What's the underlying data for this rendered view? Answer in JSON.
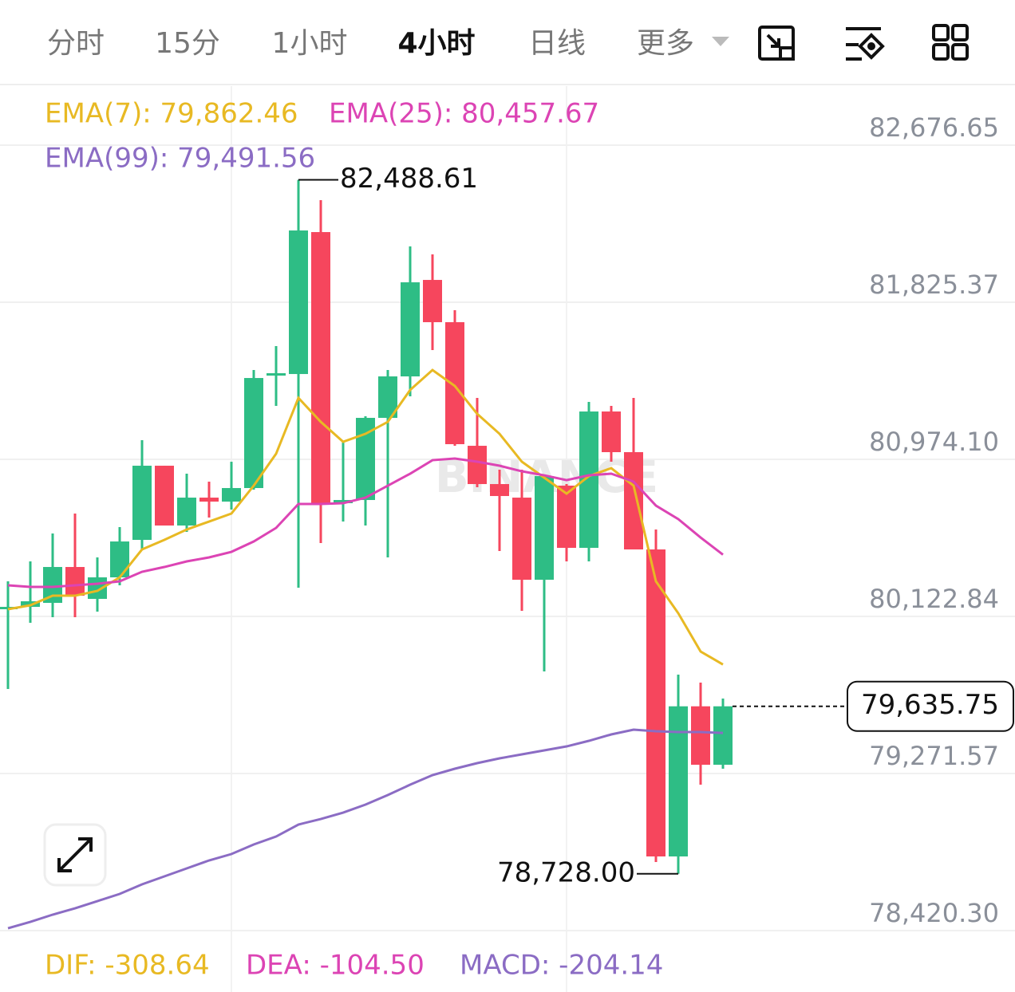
{
  "tabs": {
    "items": [
      "分时",
      "15分",
      "1小时",
      "4小时",
      "日线",
      "更多"
    ],
    "active": 3
  },
  "chart_data": {
    "type": "candlestick",
    "watermark": "BINANCE",
    "up_color": "#2ebd85",
    "down_color": "#f6465d",
    "ylim": [
      78420.3,
      83000
    ],
    "yticks": [
      {
        "value": 82676.65,
        "label": "82,676.65"
      },
      {
        "value": 81825.37,
        "label": "81,825.37"
      },
      {
        "value": 80974.1,
        "label": "80,974.10"
      },
      {
        "value": 80122.84,
        "label": "80,122.84"
      },
      {
        "value": 79271.57,
        "label": "79,271.57"
      },
      {
        "value": 78420.3,
        "label": "78,420.30"
      }
    ],
    "grid": true,
    "open": [
      80161.7,
      80174.6,
      80196.3,
      80390.7,
      80217.9,
      80334.5,
      80537.6,
      80939.5,
      80615.4,
      80766.6,
      80745.0,
      80818.5,
      81427.8,
      81436.4,
      82205.6,
      80736.4,
      80753.7,
      81198.8,
      81423.5,
      81946.3,
      81717.3,
      81047.5,
      80840.1,
      80766.6,
      80321.6,
      80831.5,
      80494.4,
      81233.3,
      81013.0,
      80485.8,
      78822.1,
      79635.75,
      79319.0
    ],
    "high": [
      80312.9,
      80421.0,
      80572.2,
      80680.2,
      80442.6,
      80606.8,
      81077.8,
      80939.5,
      80896.3,
      80853.1,
      80961.1,
      81458.0,
      81587.7,
      82488.61,
      82378.5,
      81069.1,
      81207.4,
      81458.0,
      82127.8,
      82084.6,
      81782.1,
      81306.8,
      80917.9,
      80917.9,
      80883.3,
      80840.1,
      81285.2,
      81263.6,
      81306.8,
      80593.8,
      79807.3,
      79764.1,
      79677.7
    ],
    "low": [
      79729.6,
      80088.2,
      80118.5,
      80118.5,
      80148.7,
      80291.3,
      80485.8,
      80615.4,
      80580.8,
      80658.6,
      80701.8,
      80809.9,
      81263.6,
      80278.4,
      80520.3,
      80637.0,
      80615.4,
      80442.6,
      81315.5,
      81566.1,
      81047.5,
      80822.8,
      80477.1,
      80153.0,
      79824.6,
      80421.0,
      80421.0,
      80961.1,
      80485.8,
      78791.9,
      78728.0,
      79211.0,
      79297.5
    ],
    "close": [
      80174.6,
      80204.9,
      80390.7,
      80235.1,
      80334.5,
      80529.0,
      80939.5,
      80615.4,
      80766.6,
      80745.0,
      80818.5,
      81414.8,
      81440.8,
      82214.3,
      80736.4,
      80753.7,
      81198.8,
      81423.5,
      81933.4,
      81717.3,
      81056.2,
      80840.1,
      80775.3,
      80321.6,
      80883.3,
      80494.4,
      81233.3,
      81013.0,
      80485.8,
      78822.1,
      79635.75,
      79319.0,
      79635.75
    ],
    "series": [
      {
        "name": "EMA(7)",
        "legend": "EMA(7): 79,862.46",
        "color": "#e8b923",
        "values": [
          80161.7,
          80183.3,
          80235.1,
          80235.1,
          80261.1,
          80334.5,
          80485.8,
          80537.6,
          80593.8,
          80637.0,
          80680.2,
          80831.5,
          81004.3,
          81306.8,
          81177.2,
          81069.1,
          81112.3,
          81177.2,
          81350.0,
          81458.0,
          81371.6,
          81220.4,
          81112.3,
          80961.1,
          80874.7,
          80788.3,
          80883.3,
          80926.5,
          80831.5,
          80312.9,
          80140.1,
          79932.7,
          79862.46
        ]
      },
      {
        "name": "EMA(25)",
        "legend": "EMA(25): 80,457.67",
        "color": "#dc44b4",
        "values": [
          80291.3,
          80282.7,
          80282.7,
          80291.3,
          80300.0,
          80312.9,
          80364.8,
          80390.7,
          80421.0,
          80442.6,
          80472.8,
          80529.0,
          80602.5,
          80732.1,
          80732.1,
          80736.4,
          80766.6,
          80831.5,
          80896.3,
          80969.7,
          80978.4,
          80961.1,
          80939.5,
          80909.2,
          80887.6,
          80861.7,
          80887.6,
          80896.3,
          80853.1,
          80723.4,
          80650.0,
          80550.6,
          80457.67
        ]
      },
      {
        "name": "EMA(99)",
        "legend": "EMA(99): 79,491.56",
        "color": "#8b6cc4",
        "values": [
          78433.2,
          78467.8,
          78506.7,
          78541.2,
          78580.1,
          78619.0,
          78670.9,
          78714.1,
          78757.3,
          78800.5,
          78835.1,
          78886.9,
          78930.1,
          78995.0,
          79025.2,
          79059.8,
          79103.0,
          79154.8,
          79211.0,
          79262.9,
          79297.5,
          79327.7,
          79353.6,
          79375.3,
          79396.8,
          79418.4,
          79448.7,
          79483.3,
          79509.1,
          79500.5,
          79496.2,
          79496.2,
          79491.56
        ]
      }
    ],
    "annotations": {
      "high": {
        "index": 13,
        "value": 82488.61,
        "label": "82,488.61"
      },
      "low": {
        "index": 30,
        "value": 78728.0,
        "label": "78,728.00"
      },
      "last": {
        "value": 79635.75,
        "label": "79,635.75"
      }
    },
    "indicators": [
      {
        "text": "DIF: -308.64",
        "color": "#e8b923"
      },
      {
        "text": "DEA: -104.50",
        "color": "#dc44b4"
      },
      {
        "text": "MACD: -204.14",
        "color": "#8b6cc4"
      }
    ]
  }
}
